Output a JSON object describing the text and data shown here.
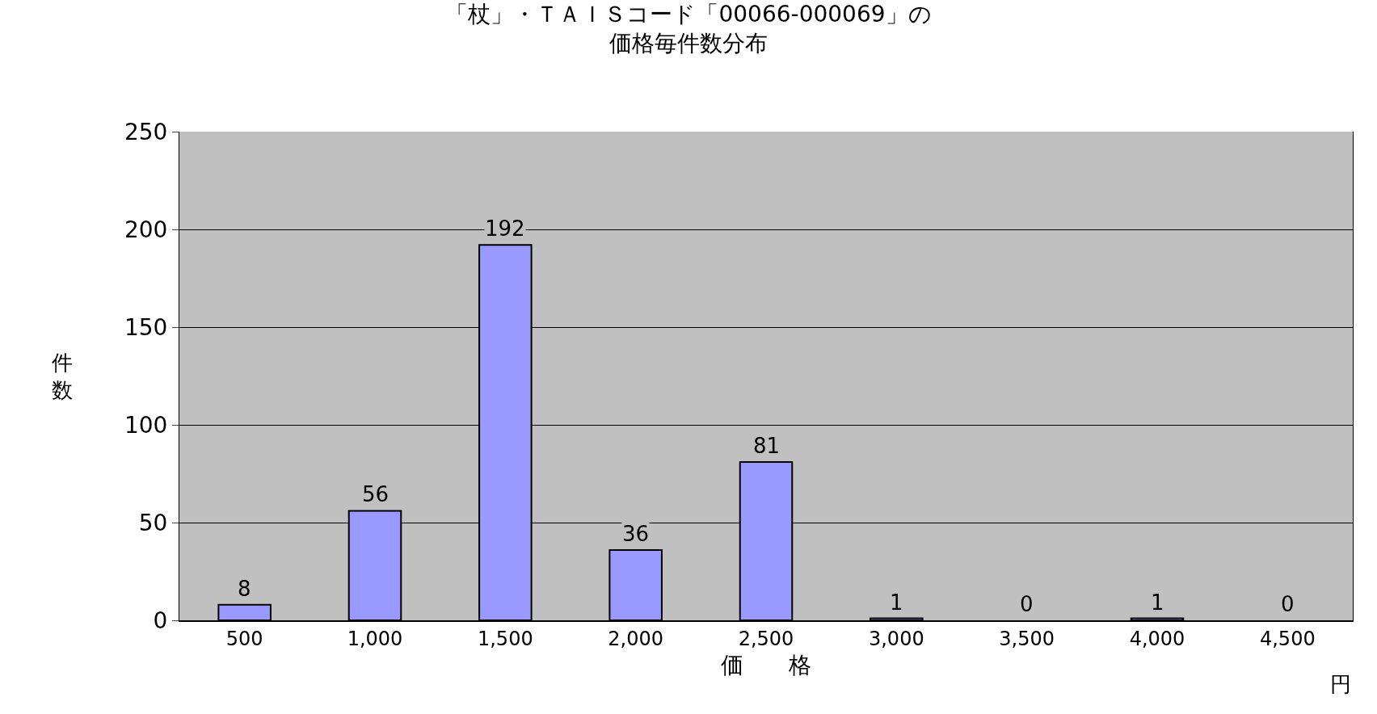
{
  "chart_data": {
    "type": "bar",
    "title": "「杖」・ＴＡＩＳコード「00066-000069」の",
    "subtitle": "価格毎件数分布",
    "xlabel": "価　　格",
    "ylabel": "件数",
    "annotations": [
      "円"
    ],
    "categories": [
      "500",
      "1,000",
      "1,500",
      "2,000",
      "2,500",
      "3,000",
      "3,500",
      "4,000",
      "4,500"
    ],
    "values": [
      8,
      56,
      192,
      36,
      81,
      1,
      0,
      1,
      0
    ],
    "color": "#9999ff",
    "data_labels": true,
    "ylim": [
      0,
      250
    ],
    "yticks": [
      0,
      50,
      100,
      150,
      200,
      250
    ],
    "grid": "y",
    "legend": false
  }
}
